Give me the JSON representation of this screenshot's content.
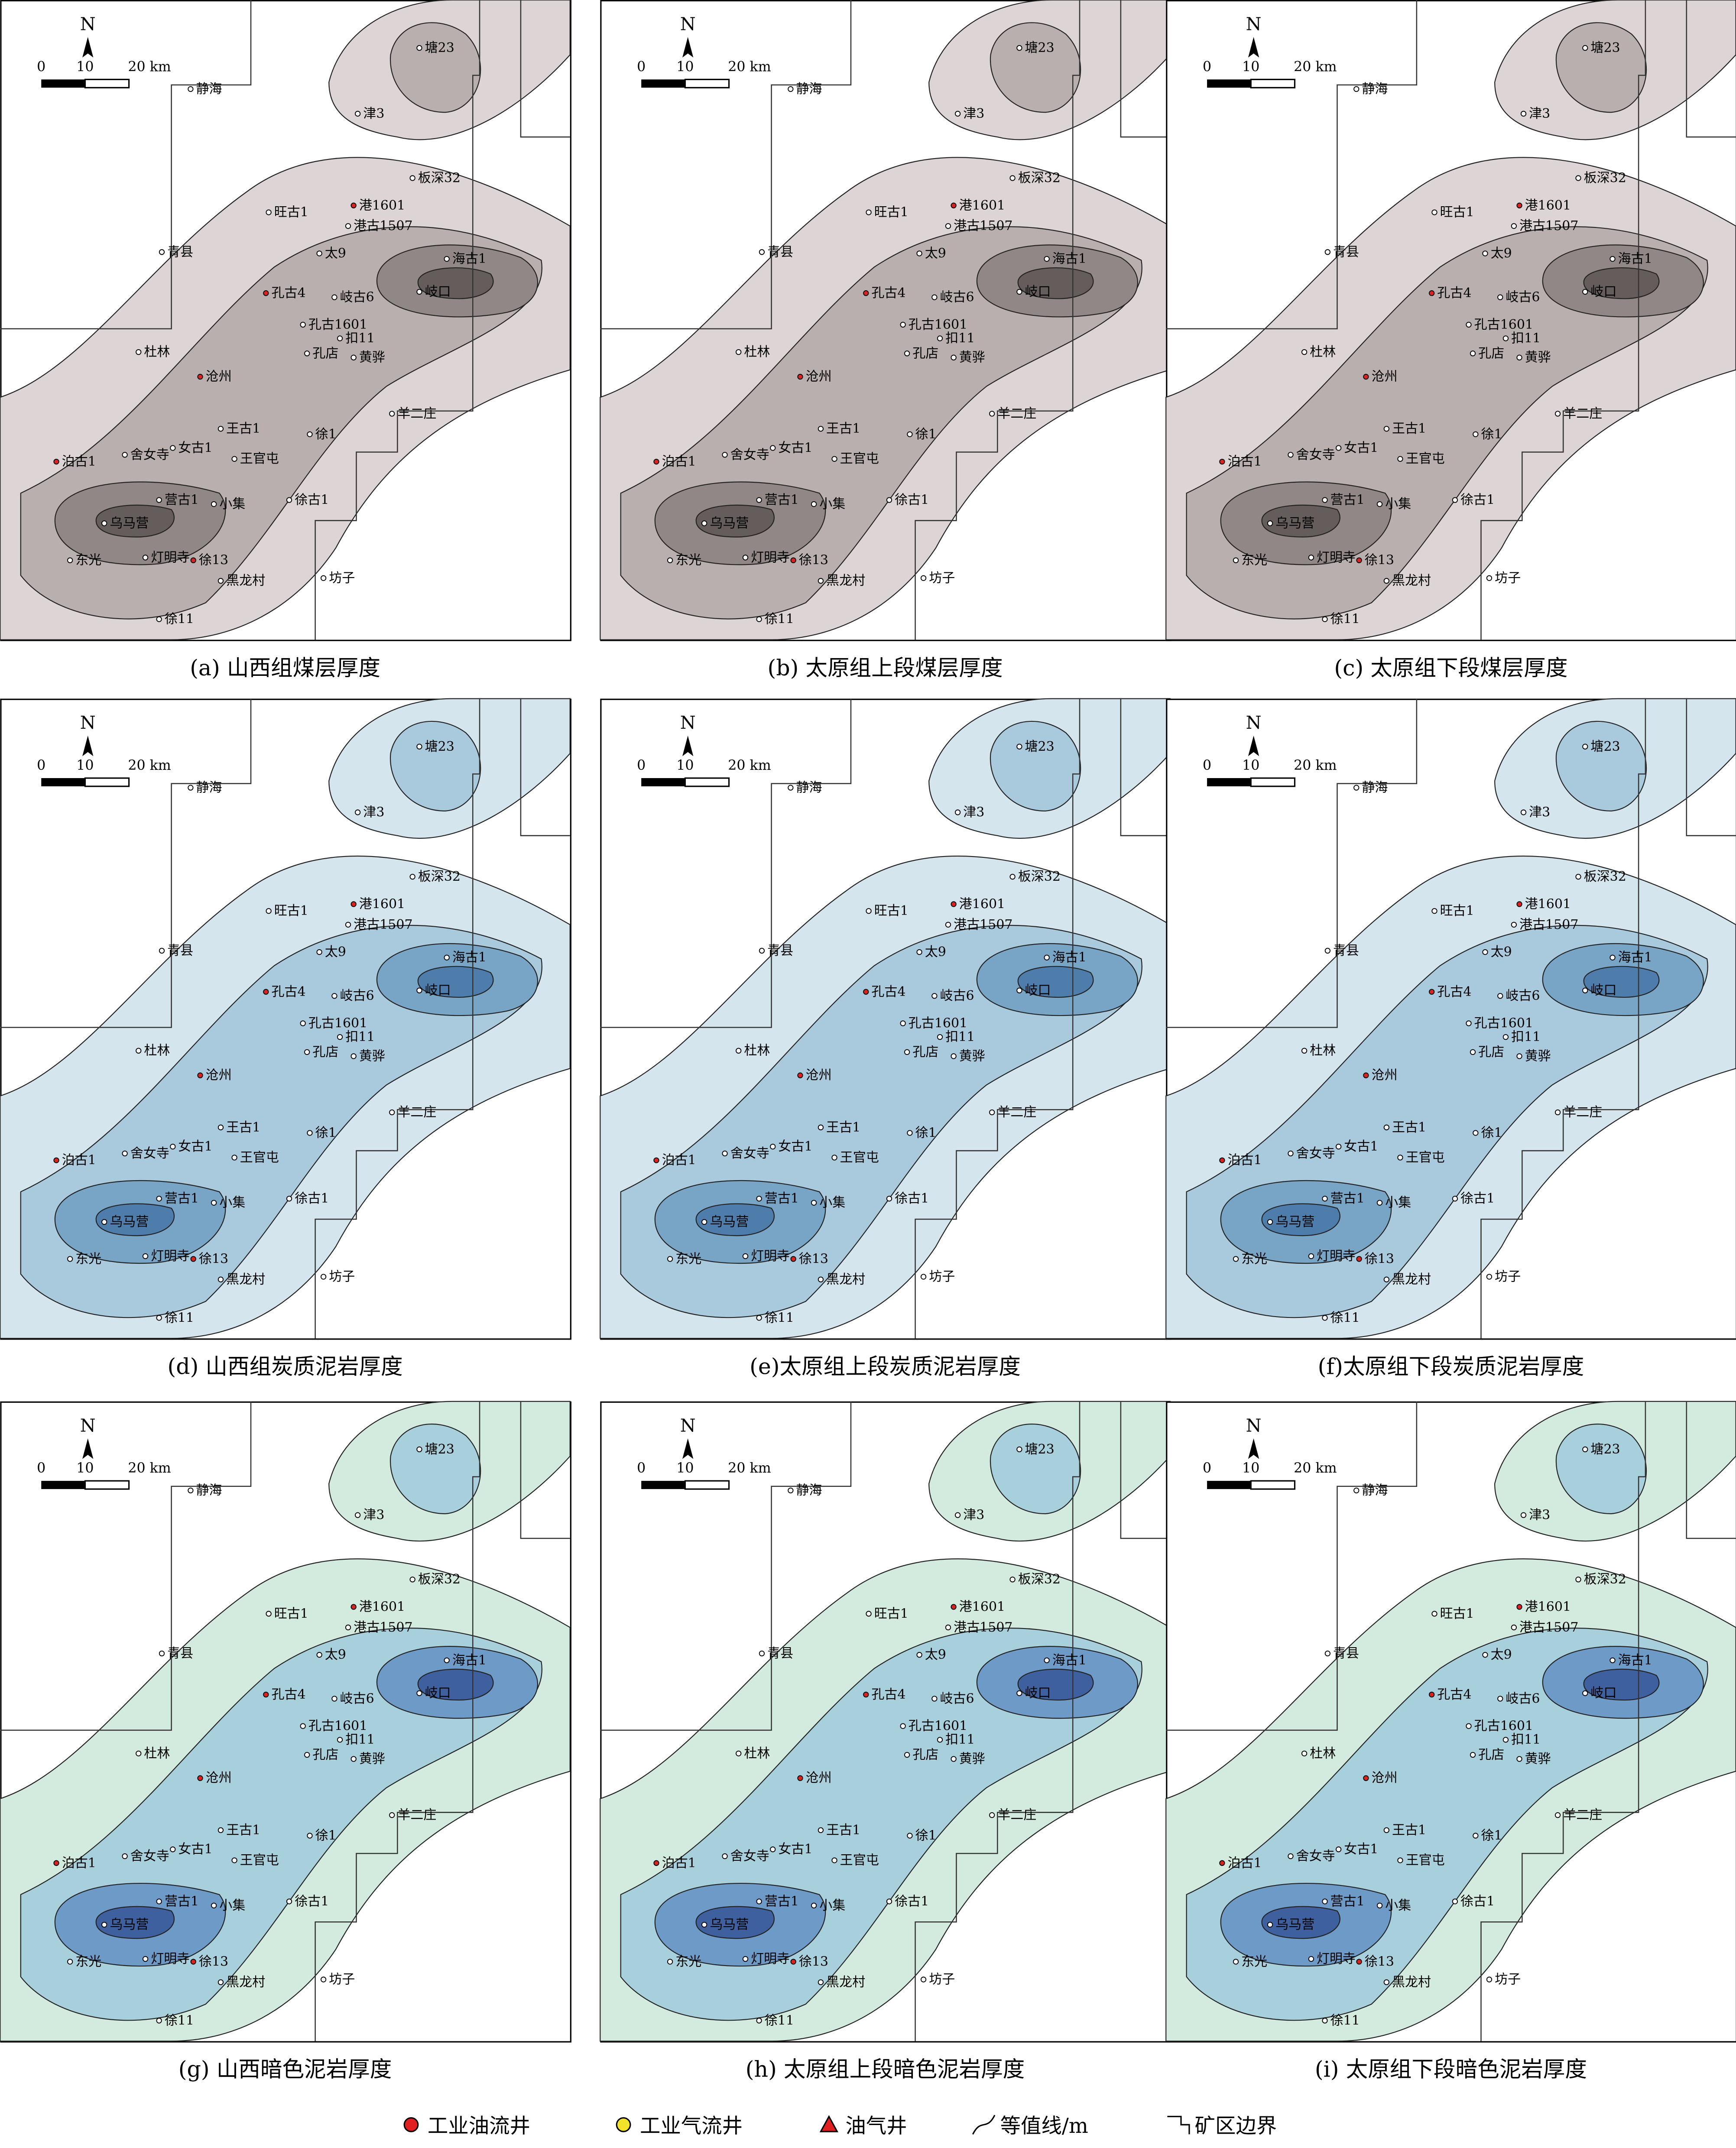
{
  "panels": [
    {
      "caption": "(a) 山西组煤层厚度",
      "scheme": "gray"
    },
    {
      "caption": "(b) 太原组上段煤层厚度",
      "scheme": "gray"
    },
    {
      "caption": "(c) 太原组下段煤层厚度",
      "scheme": "gray"
    },
    {
      "caption": "(d) 山西组炭质泥岩厚度",
      "scheme": "blue"
    },
    {
      "caption": "(e)太原组上段炭质泥岩厚度",
      "scheme": "blue"
    },
    {
      "caption": "(f)太原组下段炭质泥岩厚度",
      "scheme": "blue"
    },
    {
      "caption": "(g) 山西暗色泥岩厚度",
      "scheme": "green"
    },
    {
      "caption": "(h) 太原组上段暗色泥岩厚度",
      "scheme": "green"
    },
    {
      "caption": "(i) 太原组下段暗色泥岩厚度",
      "scheme": "green"
    }
  ],
  "schemes": {
    "gray": [
      "#ddd5d5",
      "#b9afaf",
      "#918787",
      "#655c5c"
    ],
    "blue": [
      "#d4e5ee",
      "#a9c9dd",
      "#78a4c6",
      "#4e7dac"
    ],
    "green": [
      "#d3ebdf",
      "#a8cfdc",
      "#6e9ac8",
      "#3e609f"
    ]
  },
  "north": "N",
  "scale_labels": [
    "0",
    "10",
    "20 km"
  ],
  "places": [
    "塘23",
    "静海",
    "津3",
    "板深32",
    "港1601",
    "旺古1",
    "港古1507",
    "太9",
    "海古1",
    "青县",
    "岐古6",
    "孔古4",
    "岐口",
    "孔古1601",
    "扣11",
    "孔店",
    "黄骅",
    "杜林",
    "沧州",
    "羊二庄",
    "王古1",
    "徐1",
    "舍女寺",
    "女古1",
    "王官屯",
    "泊古1",
    "营古1",
    "小集",
    "徐古1",
    "乌马营",
    "东光",
    "灯明寺",
    "徐13",
    "黑龙村",
    "坊子",
    "徐11"
  ],
  "legend": [
    "工业油流井",
    "工业气流井",
    "油气井",
    "等值线/m",
    "矿区边界"
  ]
}
